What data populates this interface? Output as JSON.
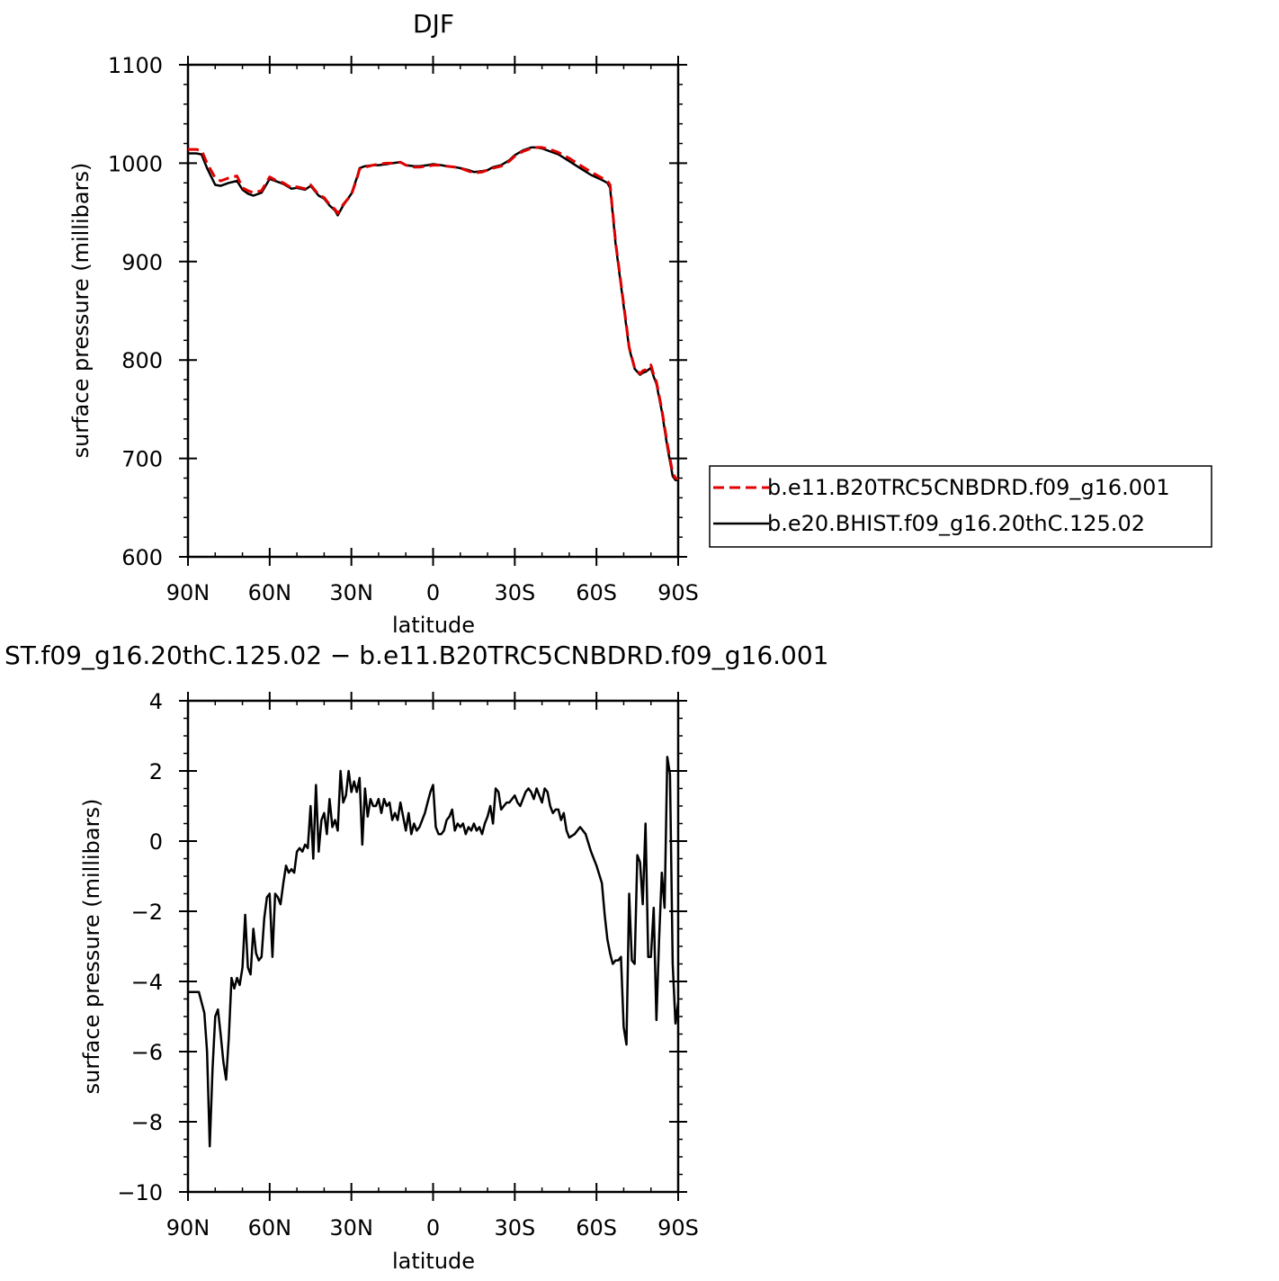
{
  "chart_data": [
    {
      "type": "line",
      "title": "DJF",
      "xlabel": "latitude",
      "ylabel": "surface pressure (millibars)",
      "xlim": [
        90,
        -90
      ],
      "ylim": [
        600,
        1100
      ],
      "x_ticks": [
        90,
        60,
        30,
        0,
        -30,
        -60,
        -90
      ],
      "x_tick_labels": [
        "90N",
        "60N",
        "30N",
        "0",
        "30S",
        "60S",
        "90S"
      ],
      "y_ticks": [
        600,
        700,
        800,
        900,
        1000,
        1100
      ],
      "y_tick_labels": [
        "600",
        "700",
        "800",
        "900",
        "1000",
        "1100"
      ],
      "grid": false,
      "legend_position": "right",
      "series": [
        {
          "name": "b.e11.B20TRC5CNBDRD.f09_g16.001",
          "color": "#e00000",
          "dash": "dashed",
          "x": [
            90,
            87,
            85,
            83,
            80,
            78,
            75,
            72,
            70,
            68,
            66,
            63,
            60,
            58,
            55,
            52,
            50,
            47,
            45,
            42,
            40,
            38,
            36,
            35,
            33,
            30,
            28,
            27,
            25,
            22,
            20,
            17,
            15,
            12,
            10,
            7,
            5,
            2,
            0,
            -3,
            -5,
            -8,
            -10,
            -13,
            -15,
            -18,
            -20,
            -22,
            -25,
            -28,
            -30,
            -33,
            -36,
            -38,
            -40,
            -43,
            -46,
            -50,
            -54,
            -58,
            -62,
            -64,
            -65,
            -66,
            -67,
            -69,
            -71,
            -72,
            -74,
            -76,
            -77,
            -78,
            -80,
            -81,
            -82,
            -84,
            -86,
            -88,
            -89,
            -90
          ],
          "y": [
            1014,
            1014,
            1013,
            1000,
            985,
            982,
            985,
            987,
            975,
            972,
            970,
            972,
            986,
            983,
            980,
            975,
            976,
            974,
            978,
            968,
            965,
            958,
            953,
            949,
            958,
            968,
            984,
            994,
            996,
            998,
            999,
            1000,
            1000,
            1001,
            998,
            996,
            996,
            997,
            998,
            998,
            997,
            996,
            995,
            992,
            990,
            991,
            993,
            995,
            997,
            1002,
            1007,
            1012,
            1015,
            1016,
            1016,
            1014,
            1011,
            1005,
            998,
            991,
            985,
            982,
            978,
            950,
            920,
            878,
            835,
            813,
            792,
            786,
            789,
            790,
            795,
            785,
            778,
            750,
            715,
            685,
            680,
            679
          ]
        },
        {
          "name": "b.e20.BHIST.f09_g16.20thC.125.02",
          "color": "#000000",
          "dash": "solid",
          "x": [
            90,
            87,
            85,
            83,
            80,
            78,
            75,
            72,
            70,
            68,
            66,
            63,
            60,
            58,
            55,
            52,
            50,
            47,
            45,
            42,
            40,
            38,
            36,
            35,
            33,
            30,
            28,
            27,
            25,
            22,
            20,
            17,
            15,
            12,
            10,
            7,
            5,
            2,
            0,
            -3,
            -5,
            -8,
            -10,
            -13,
            -15,
            -18,
            -20,
            -22,
            -25,
            -28,
            -30,
            -33,
            -36,
            -38,
            -40,
            -43,
            -46,
            -50,
            -54,
            -58,
            -62,
            -64,
            -65,
            -66,
            -67,
            -69,
            -71,
            -72,
            -74,
            -76,
            -77,
            -78,
            -80,
            -81,
            -82,
            -84,
            -86,
            -88,
            -89,
            -90
          ],
          "y": [
            1010,
            1010,
            1009,
            995,
            978,
            977,
            980,
            982,
            973,
            969,
            967,
            970,
            984,
            982,
            979,
            974,
            975,
            973,
            977,
            967,
            964,
            957,
            952,
            947,
            957,
            969,
            985,
            995,
            997,
            998,
            998,
            999,
            1000,
            1001,
            998,
            997,
            997,
            998,
            999,
            998,
            997,
            996,
            995,
            993,
            991,
            992,
            993,
            996,
            998,
            1003,
            1008,
            1013,
            1016,
            1016,
            1015,
            1012,
            1009,
            1002,
            995,
            988,
            983,
            980,
            975,
            948,
            918,
            876,
            833,
            812,
            791,
            785,
            787,
            788,
            792,
            783,
            776,
            748,
            712,
            682,
            678,
            678
          ]
        }
      ]
    },
    {
      "type": "line",
      "title": "ST.f09_g16.20thC.125.02 − b.e11.B20TRC5CNBDRD.f09_g16.001",
      "xlabel": "latitude",
      "ylabel": "surface pressure (millibars)",
      "xlim": [
        90,
        -90
      ],
      "ylim": [
        -10,
        4
      ],
      "x_ticks": [
        90,
        60,
        30,
        0,
        -30,
        -60,
        -90
      ],
      "x_tick_labels": [
        "90N",
        "60N",
        "30N",
        "0",
        "30S",
        "60S",
        "90S"
      ],
      "y_ticks": [
        -10,
        -8,
        -6,
        -4,
        -2,
        0,
        2,
        4
      ],
      "y_tick_labels": [
        "−10",
        "−8",
        "−6",
        "−4",
        "−2",
        "0",
        "2",
        "4"
      ],
      "grid": false,
      "series": [
        {
          "color": "#000000",
          "dash": "solid",
          "x": [
            90,
            86,
            84,
            83,
            82,
            81,
            80,
            79,
            78,
            77,
            76,
            75,
            74,
            73,
            72,
            71,
            70,
            69,
            68,
            67,
            66,
            65,
            64,
            63,
            62,
            61,
            60,
            59,
            58,
            57,
            56,
            55,
            54,
            53,
            52,
            51,
            50,
            49,
            48,
            47,
            46,
            45,
            44,
            43,
            42,
            41,
            40,
            39,
            38,
            37,
            36,
            35,
            34,
            33,
            32,
            31,
            30,
            29,
            28,
            27,
            26,
            25,
            24,
            23,
            22,
            21,
            20,
            19,
            18,
            17,
            16,
            15,
            14,
            13,
            12,
            11,
            10,
            9,
            8,
            7,
            6,
            5,
            4,
            3,
            2,
            1,
            0,
            -1,
            -2,
            -3,
            -4,
            -5,
            -6,
            -7,
            -8,
            -9,
            -10,
            -11,
            -12,
            -13,
            -14,
            -15,
            -16,
            -17,
            -18,
            -19,
            -20,
            -21,
            -22,
            -23,
            -24,
            -25,
            -26,
            -27,
            -28,
            -29,
            -30,
            -31,
            -32,
            -33,
            -34,
            -35,
            -36,
            -37,
            -38,
            -39,
            -40,
            -41,
            -42,
            -43,
            -44,
            -45,
            -46,
            -47,
            -48,
            -49,
            -50,
            -52,
            -54,
            -56,
            -58,
            -60,
            -62,
            -63,
            -64,
            -65,
            -66,
            -67,
            -68,
            -69,
            -70,
            -71,
            -72,
            -73,
            -74,
            -75,
            -76,
            -77,
            -78,
            -79,
            -80,
            -81,
            -82,
            -83,
            -84,
            -85,
            -86,
            -87,
            -88,
            -89,
            -90
          ],
          "y": [
            -4.3,
            -4.3,
            -4.9,
            -6.0,
            -8.7,
            -6.5,
            -5.0,
            -4.8,
            -5.5,
            -6.3,
            -6.8,
            -5.6,
            -3.9,
            -4.2,
            -3.9,
            -4.1,
            -3.6,
            -2.1,
            -3.6,
            -3.8,
            -2.5,
            -3.2,
            -3.4,
            -3.3,
            -2.2,
            -1.6,
            -1.5,
            -3.3,
            -1.5,
            -1.6,
            -1.8,
            -1.2,
            -0.7,
            -0.9,
            -0.8,
            -0.9,
            -0.3,
            -0.2,
            -0.3,
            -0.1,
            -0.2,
            1.0,
            -0.5,
            1.6,
            -0.3,
            0.6,
            0.8,
            0.2,
            1.2,
            0.4,
            0.6,
            0.3,
            2.0,
            1.1,
            1.3,
            2.0,
            1.4,
            1.7,
            1.4,
            1.8,
            -0.1,
            1.5,
            0.7,
            1.2,
            1.0,
            1.0,
            1.2,
            0.8,
            1.2,
            1.0,
            1.1,
            0.6,
            0.8,
            0.6,
            1.1,
            0.7,
            0.3,
            0.8,
            0.2,
            0.5,
            0.3,
            0.4,
            0.6,
            0.8,
            1.1,
            1.4,
            1.6,
            0.4,
            0.2,
            0.2,
            0.3,
            0.6,
            0.7,
            0.9,
            0.3,
            0.5,
            0.4,
            0.5,
            0.2,
            0.4,
            0.3,
            0.5,
            0.3,
            0.4,
            0.2,
            0.5,
            0.7,
            1.0,
            0.5,
            1.5,
            1.4,
            0.9,
            1.0,
            1.1,
            1.1,
            1.2,
            1.3,
            1.1,
            1.0,
            1.2,
            1.4,
            1.5,
            1.4,
            1.2,
            1.5,
            1.3,
            1.1,
            1.5,
            1.4,
            1.0,
            0.8,
            0.9,
            0.9,
            0.6,
            0.8,
            0.3,
            0.1,
            0.2,
            0.4,
            0.2,
            -0.3,
            -0.7,
            -1.2,
            -2.1,
            -2.8,
            -3.2,
            -3.5,
            -3.4,
            -3.4,
            -3.3,
            -5.3,
            -5.8,
            -1.5,
            -3.4,
            -3.5,
            -0.4,
            -0.6,
            -1.8,
            0.5,
            -3.3,
            -3.3,
            -1.9,
            -5.1,
            -2.8,
            -0.9,
            -1.9,
            2.4,
            1.9,
            -3.5,
            -5.2,
            -4.6
          ]
        }
      ]
    }
  ]
}
